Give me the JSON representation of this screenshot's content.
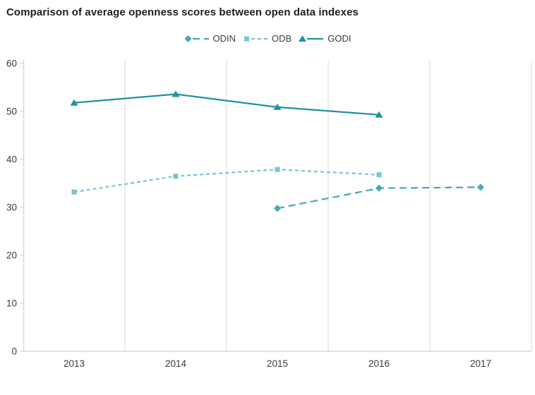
{
  "chart_data": {
    "type": "line",
    "title": "Comparison of average openness scores between open data indexes",
    "categories": [
      "2013",
      "2014",
      "2015",
      "2016",
      "2017"
    ],
    "series": [
      {
        "name": "ODIN",
        "color": "#41aab4",
        "line_style": "dashed",
        "dash": "10 6",
        "marker": "diamond",
        "values": [
          null,
          null,
          29.8,
          34.0,
          34.2
        ]
      },
      {
        "name": "ODB",
        "color": "#76c6d0",
        "line_style": "dashed",
        "dash": "5 4",
        "marker": "square",
        "values": [
          33.2,
          36.5,
          37.9,
          36.8,
          null
        ]
      },
      {
        "name": "GODI",
        "color": "#1e91a0",
        "line_style": "solid",
        "dash": "",
        "marker": "triangle",
        "values": [
          51.8,
          53.6,
          50.9,
          49.3,
          null
        ]
      }
    ],
    "xlabel": "",
    "ylabel": "",
    "ylim": [
      0,
      60
    ],
    "yticks": [
      0,
      10,
      20,
      30,
      40,
      50,
      60
    ],
    "legend_position": "top-center",
    "grid": "vertical lines at category boundaries",
    "colors": {
      "axis": "#d9d9d9",
      "grid": "#e4e4e4",
      "tick_label": "#3b3b3b",
      "title": "#1f1f1f"
    }
  }
}
